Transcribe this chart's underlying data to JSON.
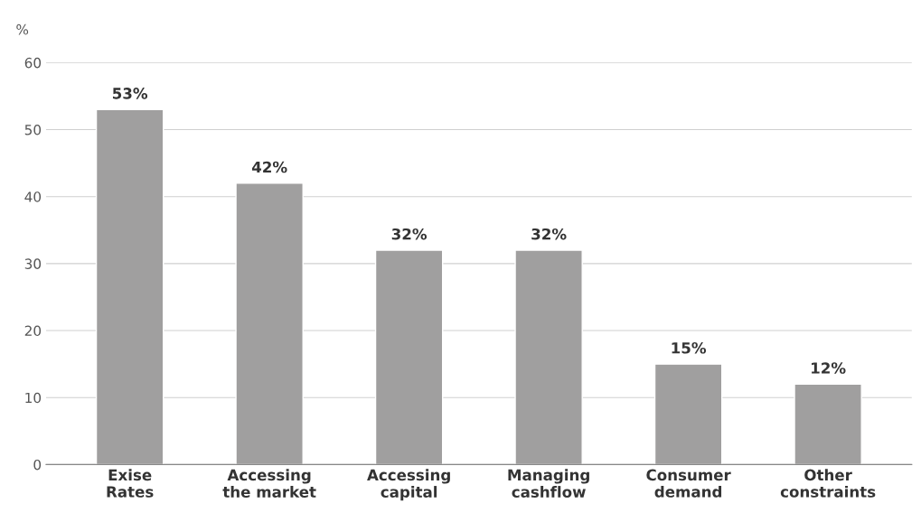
{
  "chart_data": {
    "type": "bar",
    "ylabel": "%",
    "categories": [
      "Exise\nRates",
      "Accessing\nthe market",
      "Accessing\ncapital",
      "Managing\ncashflow",
      "Consumer\ndemand",
      "Other\nconstraints"
    ],
    "values": [
      53,
      42,
      32,
      32,
      15,
      12
    ],
    "value_labels": [
      "53%",
      "42%",
      "32%",
      "32%",
      "15%",
      "12%"
    ],
    "color": "#a09f9f",
    "ylim": [
      0,
      60
    ],
    "yticks": [
      0,
      10,
      20,
      30,
      40,
      50,
      60
    ],
    "grid": "y"
  }
}
